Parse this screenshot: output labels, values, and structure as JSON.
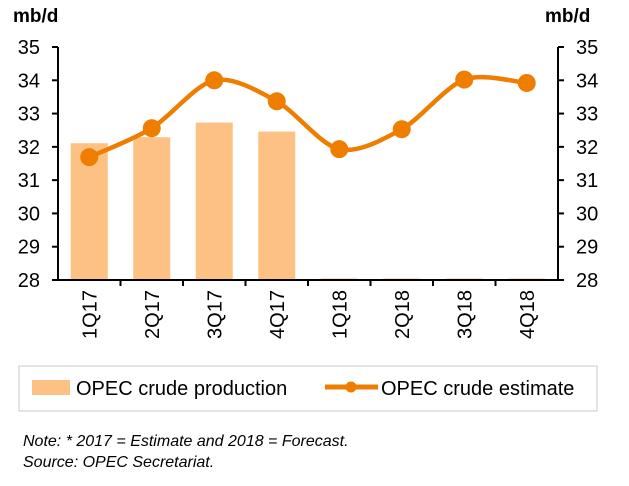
{
  "chart_data": {
    "type": "bar+line",
    "categories": [
      "1Q17",
      "2Q17",
      "3Q17",
      "4Q17",
      "1Q18",
      "2Q18",
      "3Q18",
      "4Q18"
    ],
    "series": [
      {
        "name": "OPEC crude production",
        "type": "bar",
        "color": "#FDC283",
        "values": [
          32.11,
          32.29,
          32.73,
          32.46,
          null,
          null,
          null,
          null
        ]
      },
      {
        "name": "OPEC crude estimate",
        "type": "line",
        "color": "#EE7D00",
        "values": [
          31.69,
          32.56,
          34.0,
          33.37,
          31.93,
          32.53,
          34.02,
          33.92
        ]
      }
    ],
    "ylabel_left": "mb/d",
    "ylabel_right": "mb/d",
    "ylim": [
      28,
      35
    ],
    "yticks": [
      "28",
      "29",
      "30",
      "31",
      "32",
      "33",
      "34",
      "35"
    ],
    "grid": false,
    "legend": {
      "position": "bottom",
      "items": [
        "OPEC crude production",
        "OPEC crude estimate"
      ]
    }
  },
  "notes": {
    "note": "Note: * 2017 = Estimate and 2018 = Forecast.",
    "source": "Source: OPEC Secretariat."
  }
}
